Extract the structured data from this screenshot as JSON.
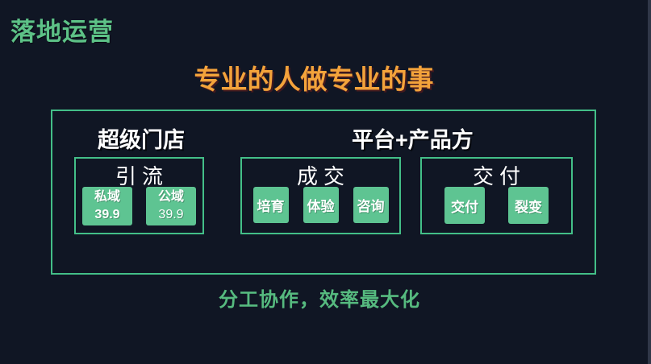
{
  "page": {
    "title": "落地运营",
    "subtitle": "专业的人做专业的事",
    "footer": "分工协作，效率最大化"
  },
  "colors": {
    "background": "#101624",
    "border_green": "#43bf88",
    "chip_green": "#5ec492",
    "title_green": "#5dc287",
    "footer_green": "#56ba7f",
    "subtitle_orange": "#f3a33b",
    "heading_white": "#ffffff"
  },
  "diagram": {
    "groups": [
      {
        "label": "超级门店"
      },
      {
        "label": "平台+产品方"
      }
    ],
    "stages": [
      {
        "title": "引流",
        "buttons": [
          {
            "line1": "私域",
            "line2": "39.9"
          },
          {
            "line1": "公域",
            "line2": "39.9"
          }
        ]
      },
      {
        "title": "成交",
        "buttons": [
          {
            "label": "培育"
          },
          {
            "label": "体验"
          },
          {
            "label": "咨询"
          }
        ]
      },
      {
        "title": "交付",
        "buttons": [
          {
            "label": "交付"
          },
          {
            "label": "裂变"
          }
        ]
      }
    ]
  }
}
